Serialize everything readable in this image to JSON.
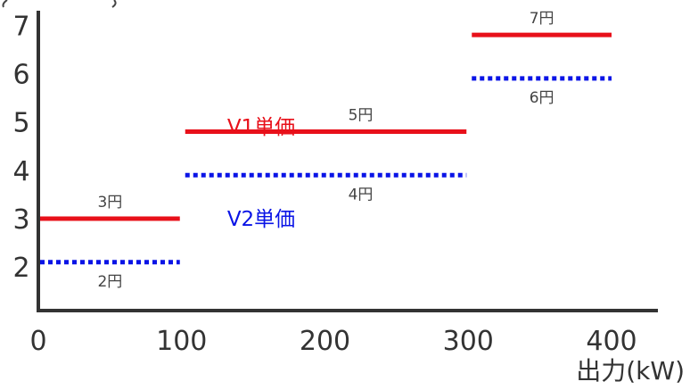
{
  "chart_data": {
    "type": "step",
    "title": "",
    "xlabel": "出力(kW)",
    "ylabel": "",
    "xlim": [
      0,
      400
    ],
    "ylim": [
      1.1,
      7.3
    ],
    "x_ticks": [
      "0",
      "100",
      "200",
      "300",
      "400"
    ],
    "y_ticks": [
      "2",
      "3",
      "4",
      "5",
      "6",
      "7"
    ],
    "grid": false,
    "series": [
      {
        "name": "V1単価",
        "color": "#e8101a",
        "style": "solid",
        "segments": [
          {
            "x0": 0,
            "x1": 100,
            "y": 3,
            "label": "3円"
          },
          {
            "x0": 100,
            "x1": 300,
            "y": 4.8,
            "label": "5円"
          },
          {
            "x0": 300,
            "x1": 400,
            "y": 6.8,
            "label": "7円"
          }
        ]
      },
      {
        "name": "V2単価",
        "color": "#0a14e6",
        "style": "dotted",
        "segments": [
          {
            "x0": 0,
            "x1": 100,
            "y": 2.1,
            "label": "2円"
          },
          {
            "x0": 100,
            "x1": 300,
            "y": 3.9,
            "label": "4円"
          },
          {
            "x0": 300,
            "x1": 400,
            "y": 5.9,
            "label": "6円"
          }
        ]
      }
    ]
  }
}
